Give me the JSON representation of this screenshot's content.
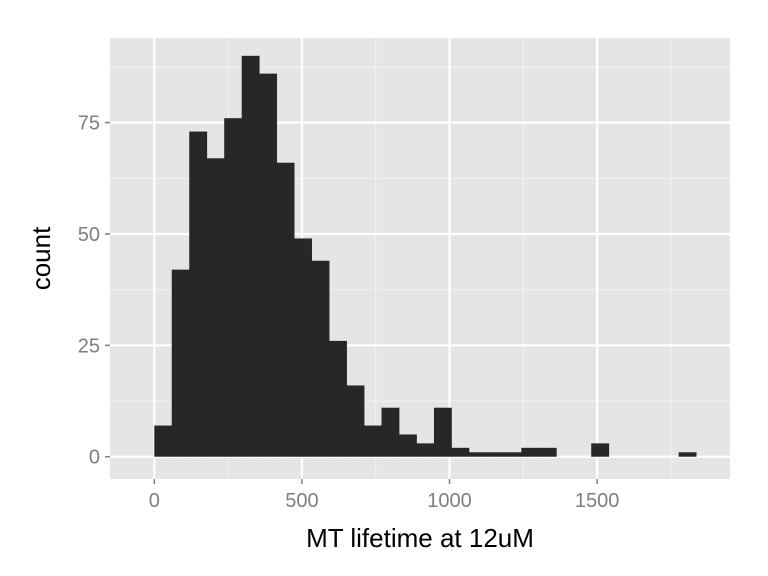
{
  "chart_data": {
    "type": "bar",
    "subtype": "histogram",
    "title": "",
    "xlabel": "MT lifetime at 12uM",
    "ylabel": "count",
    "xlim": [
      -150,
      1950
    ],
    "ylim": [
      -5,
      94
    ],
    "x_ticks": [
      0,
      500,
      1000,
      1500
    ],
    "x_tick_labels": [
      "0",
      "500",
      "1000",
      "1500"
    ],
    "y_ticks": [
      0,
      25,
      50,
      75
    ],
    "y_tick_labels": [
      "0",
      "25",
      "50",
      "75"
    ],
    "grid": true,
    "legend": "none",
    "bin_width": 59.2,
    "bins": [
      {
        "x0": 0,
        "x1": 59.2,
        "count": 7
      },
      {
        "x0": 59.2,
        "x1": 118.4,
        "count": 42
      },
      {
        "x0": 118.4,
        "x1": 177.6,
        "count": 73
      },
      {
        "x0": 177.6,
        "x1": 236.8,
        "count": 67
      },
      {
        "x0": 236.8,
        "x1": 296.0,
        "count": 76
      },
      {
        "x0": 296.0,
        "x1": 355.2,
        "count": 90
      },
      {
        "x0": 355.2,
        "x1": 414.4,
        "count": 86
      },
      {
        "x0": 414.4,
        "x1": 473.6,
        "count": 66
      },
      {
        "x0": 473.6,
        "x1": 532.8,
        "count": 49
      },
      {
        "x0": 532.8,
        "x1": 592.0,
        "count": 44
      },
      {
        "x0": 592.0,
        "x1": 651.2,
        "count": 26
      },
      {
        "x0": 651.2,
        "x1": 710.4,
        "count": 16
      },
      {
        "x0": 710.4,
        "x1": 769.6,
        "count": 7
      },
      {
        "x0": 769.6,
        "x1": 828.8,
        "count": 11
      },
      {
        "x0": 828.8,
        "x1": 888.0,
        "count": 5
      },
      {
        "x0": 888.0,
        "x1": 947.2,
        "count": 3
      },
      {
        "x0": 947.2,
        "x1": 1006.4,
        "count": 11
      },
      {
        "x0": 1006.4,
        "x1": 1065.6,
        "count": 2
      },
      {
        "x0": 1065.6,
        "x1": 1124.8,
        "count": 1
      },
      {
        "x0": 1124.8,
        "x1": 1184.0,
        "count": 1
      },
      {
        "x0": 1184.0,
        "x1": 1243.2,
        "count": 1
      },
      {
        "x0": 1243.2,
        "x1": 1302.4,
        "count": 2
      },
      {
        "x0": 1302.4,
        "x1": 1361.6,
        "count": 2
      },
      {
        "x0": 1361.6,
        "x1": 1420.8,
        "count": 0
      },
      {
        "x0": 1420.8,
        "x1": 1480.0,
        "count": 0
      },
      {
        "x0": 1480.0,
        "x1": 1539.2,
        "count": 3
      },
      {
        "x0": 1539.2,
        "x1": 1598.4,
        "count": 0
      },
      {
        "x0": 1598.4,
        "x1": 1657.6,
        "count": 0
      },
      {
        "x0": 1657.6,
        "x1": 1716.8,
        "count": 0
      },
      {
        "x0": 1716.8,
        "x1": 1776.0,
        "count": 0
      },
      {
        "x0": 1776.0,
        "x1": 1835.2,
        "count": 1
      }
    ],
    "colors": {
      "panel_background": "#e5e5e5",
      "grid_major": "#ffffff",
      "grid_minor": "#f2f2f2",
      "bar_fill": "#272727",
      "tick_label": "#7f7f7f",
      "axis_title": "#000000"
    }
  }
}
